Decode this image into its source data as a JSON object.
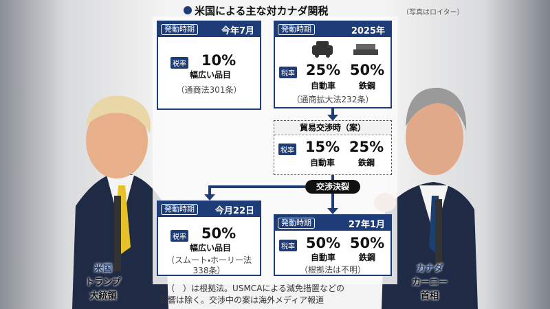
{
  "header": {
    "title": "米国による主な対カナダ関税",
    "credit": "（写真はロイター）"
  },
  "boxes": [
    {
      "header_label": "発動時期",
      "date": "今年7月",
      "rate_label": "税率",
      "rates": [
        {
          "rate": "10%",
          "item": "幅広い品目"
        }
      ],
      "law": [
        "（通商法301条）"
      ]
    },
    {
      "header_label": "発動時期",
      "date": "2025年",
      "rate_label": "税率",
      "rates": [
        {
          "rate": "25%",
          "item": "自動車"
        },
        {
          "rate": "50%",
          "item": "鉄鋼"
        }
      ],
      "law": [
        "（通商拡大法232条）"
      ]
    },
    {
      "header_label": "発動時期",
      "date": "今月22日",
      "rate_label": "税率",
      "rates": [
        {
          "rate": "50%",
          "item": "幅広い品目"
        }
      ],
      "law": [
        "（スムート・ホーリー法",
        "338条）"
      ]
    },
    {
      "header_label": "発動時期",
      "date": "27年1月",
      "rate_label": "税率",
      "rates": [
        {
          "rate": "50%",
          "item": "自動車"
        },
        {
          "rate": "50%",
          "item": "鉄鋼"
        }
      ],
      "law": [
        "（根拠法は不明）"
      ]
    }
  ],
  "trade_talks": {
    "title": "貿易交渉時（案）",
    "rate_label": "税率",
    "rates": [
      {
        "rate": "15%",
        "item": "自動車"
      },
      {
        "rate": "25%",
        "item": "鉄鋼"
      }
    ]
  },
  "badge": "交渉決裂",
  "people": [
    {
      "country": "米国",
      "name": "トランプ",
      "role": "大統領"
    },
    {
      "country": "カナダ",
      "name": "カーニー",
      "role": "首相"
    }
  ],
  "footnote": [
    "※（　）は根拠法。USMCAによる減免措置などの",
    "影響は除く。交渉中の案は海外メディア報道"
  ]
}
